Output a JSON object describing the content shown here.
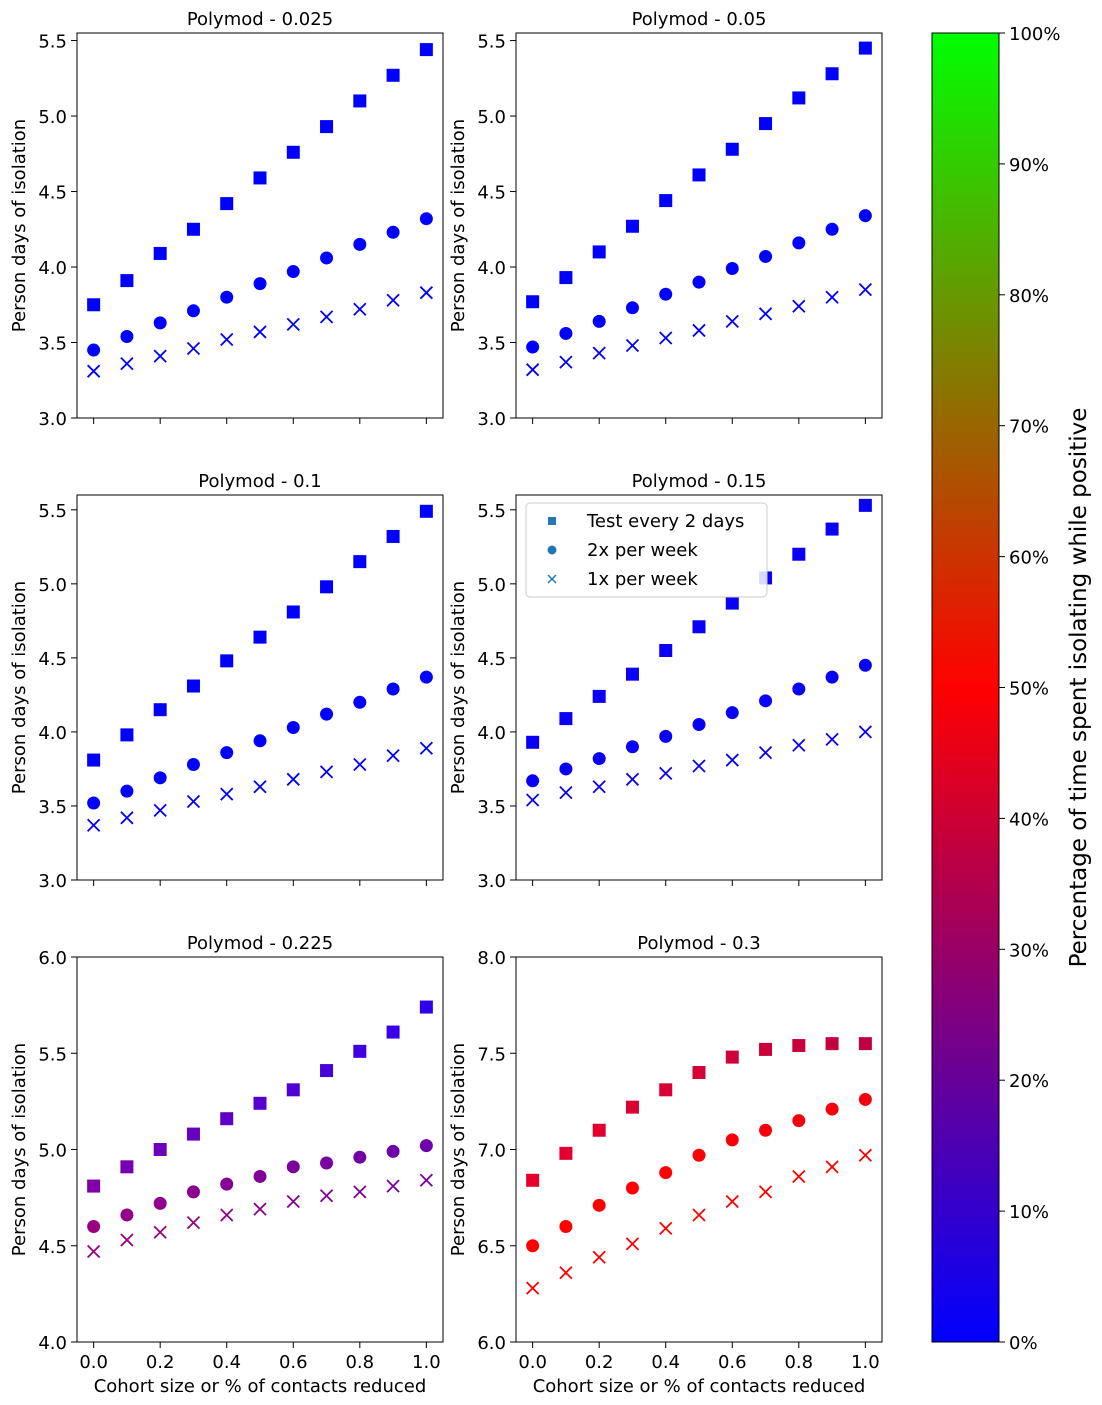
{
  "chart_data": {
    "type": "scatter",
    "x": [
      0.0,
      0.1,
      0.2,
      0.3,
      0.4,
      0.5,
      0.6,
      0.7,
      0.8,
      0.9,
      1.0
    ],
    "xlabel": "Cohort size or % of contacts reduced",
    "ylabel": "Person days of isolation",
    "x_ticks": [
      "0.0",
      "0.2",
      "0.4",
      "0.6",
      "0.8",
      "1.0"
    ],
    "legend": {
      "placement": "upper-left of panel 4",
      "entries": [
        {
          "marker": "square",
          "label": "Test every 2 days"
        },
        {
          "marker": "circle",
          "label": "2x per week"
        },
        {
          "marker": "x",
          "label": "1x per week"
        }
      ]
    },
    "colorbar": {
      "label": "Percentage of time spent isolating while positive",
      "ticks": [
        "0%",
        "10%",
        "20%",
        "30%",
        "40%",
        "50%",
        "60%",
        "70%",
        "80%",
        "90%",
        "100%"
      ],
      "colors": [
        "#0000ff",
        "#ff0000",
        "#00ff00"
      ]
    },
    "panels": [
      {
        "title": "Polymod - 0.025",
        "ylim": [
          3.0,
          5.55
        ],
        "y_ticks": [
          "3.0",
          "3.5",
          "4.0",
          "4.5",
          "5.0",
          "5.5"
        ],
        "color": "#0000ff",
        "series": [
          {
            "name": "Test every 2 days",
            "values": [
              3.75,
              3.91,
              4.09,
              4.25,
              4.42,
              4.59,
              4.76,
              4.93,
              5.1,
              5.27,
              5.44
            ]
          },
          {
            "name": "2x per week",
            "values": [
              3.45,
              3.54,
              3.63,
              3.71,
              3.8,
              3.89,
              3.97,
              4.06,
              4.15,
              4.23,
              4.32
            ]
          },
          {
            "name": "1x per week",
            "values": [
              3.31,
              3.36,
              3.41,
              3.46,
              3.52,
              3.57,
              3.62,
              3.67,
              3.72,
              3.78,
              3.83
            ]
          }
        ]
      },
      {
        "title": "Polymod - 0.05",
        "ylim": [
          3.0,
          5.55
        ],
        "y_ticks": [
          "3.0",
          "3.5",
          "4.0",
          "4.5",
          "5.0",
          "5.5"
        ],
        "color": "#0000ff",
        "series": [
          {
            "name": "Test every 2 days",
            "values": [
              3.77,
              3.93,
              4.1,
              4.27,
              4.44,
              4.61,
              4.78,
              4.95,
              5.12,
              5.28,
              5.45
            ]
          },
          {
            "name": "2x per week",
            "values": [
              3.47,
              3.56,
              3.64,
              3.73,
              3.82,
              3.9,
              3.99,
              4.07,
              4.16,
              4.25,
              4.34
            ]
          },
          {
            "name": "1x per week",
            "values": [
              3.32,
              3.37,
              3.43,
              3.48,
              3.53,
              3.58,
              3.64,
              3.69,
              3.74,
              3.8,
              3.85
            ]
          }
        ]
      },
      {
        "title": "Polymod - 0.1",
        "ylim": [
          3.0,
          5.6
        ],
        "y_ticks": [
          "3.0",
          "3.5",
          "4.0",
          "4.5",
          "5.0",
          "5.5"
        ],
        "color": "#0000ff",
        "series": [
          {
            "name": "Test every 2 days",
            "values": [
              3.81,
              3.98,
              4.15,
              4.31,
              4.48,
              4.64,
              4.81,
              4.98,
              5.15,
              5.32,
              5.49
            ]
          },
          {
            "name": "2x per week",
            "values": [
              3.52,
              3.6,
              3.69,
              3.78,
              3.86,
              3.94,
              4.03,
              4.12,
              4.2,
              4.29,
              4.37
            ]
          },
          {
            "name": "1x per week",
            "values": [
              3.37,
              3.42,
              3.47,
              3.53,
              3.58,
              3.63,
              3.68,
              3.73,
              3.78,
              3.84,
              3.89
            ]
          }
        ]
      },
      {
        "title": "Polymod - 0.15",
        "ylim": [
          3.0,
          5.6
        ],
        "y_ticks": [
          "3.0",
          "3.5",
          "4.0",
          "4.5",
          "5.0",
          "5.5"
        ],
        "color": "#0a00f5",
        "series": [
          {
            "name": "Test every 2 days",
            "values": [
              3.93,
              4.09,
              4.24,
              4.39,
              4.55,
              4.71,
              4.87,
              5.04,
              5.2,
              5.37,
              5.53
            ]
          },
          {
            "name": "2x per week",
            "values": [
              3.67,
              3.75,
              3.82,
              3.9,
              3.97,
              4.05,
              4.13,
              4.21,
              4.29,
              4.37,
              4.45
            ]
          },
          {
            "name": "1x per week",
            "values": [
              3.54,
              3.59,
              3.63,
              3.68,
              3.72,
              3.77,
              3.81,
              3.86,
              3.91,
              3.95,
              4.0
            ]
          }
        ]
      },
      {
        "title": "Polymod - 0.225",
        "ylim": [
          4.0,
          6.0
        ],
        "y_ticks": [
          "4.0",
          "4.5",
          "5.0",
          "5.5",
          "6.0"
        ],
        "series": [
          {
            "name": "Test every 2 days",
            "values": [
              4.81,
              4.91,
              5.0,
              5.08,
              5.16,
              5.24,
              5.31,
              5.41,
              5.51,
              5.61,
              5.74
            ],
            "colors": [
              "#8000a6",
              "#7800b0",
              "#7000b8",
              "#6800c0",
              "#6000c8",
              "#5800d0",
              "#5000d6",
              "#4800dc",
              "#4000e2",
              "#3800e8",
              "#3000ee"
            ]
          },
          {
            "name": "2x per week",
            "values": [
              4.6,
              4.66,
              4.72,
              4.78,
              4.82,
              4.86,
              4.91,
              4.93,
              4.96,
              4.99,
              5.02
            ],
            "colors": [
              "#9a0080",
              "#950088",
              "#90008c",
              "#8a0090",
              "#850094",
              "#800098",
              "#7b009c",
              "#7800a0",
              "#7400a4",
              "#7000a8",
              "#6c00ac"
            ]
          },
          {
            "name": "1x per week",
            "values": [
              4.47,
              4.53,
              4.57,
              4.62,
              4.66,
              4.69,
              4.73,
              4.76,
              4.78,
              4.81,
              4.84
            ],
            "colors": [
              "#a0007a",
              "#9c007e",
              "#980082",
              "#940086",
              "#90008a",
              "#8c008e",
              "#880092",
              "#840096",
              "#80009a",
              "#7c009e",
              "#7800a2"
            ]
          }
        ]
      },
      {
        "title": "Polymod - 0.3",
        "ylim": [
          6.0,
          8.0
        ],
        "y_ticks": [
          "6.0",
          "6.5",
          "7.0",
          "7.5",
          "8.0"
        ],
        "series": [
          {
            "name": "Test every 2 days",
            "values": [
              6.84,
              6.98,
              7.1,
              7.22,
              7.31,
              7.4,
              7.48,
              7.52,
              7.54,
              7.55,
              7.55
            ],
            "colors": [
              "#e8002c",
              "#e4002e",
              "#e00030",
              "#dc0032",
              "#d80034",
              "#d40036",
              "#d00038",
              "#cc003a",
              "#c8003c",
              "#c4003e",
              "#c00040"
            ]
          },
          {
            "name": "2x per week",
            "values": [
              6.5,
              6.6,
              6.71,
              6.8,
              6.88,
              6.97,
              7.05,
              7.1,
              7.15,
              7.21,
              7.26
            ],
            "colors": [
              "#ff0000",
              "#ff0000",
              "#ff0000",
              "#ff0004",
              "#fe0006",
              "#fc0008",
              "#fa000a",
              "#f8000c",
              "#f6000e",
              "#f40010",
              "#f20012"
            ]
          },
          {
            "name": "1x per week",
            "values": [
              6.28,
              6.36,
              6.44,
              6.51,
              6.59,
              6.66,
              6.73,
              6.78,
              6.86,
              6.91,
              6.97
            ],
            "colors": [
              "#ff0000",
              "#ff0000",
              "#ff0000",
              "#ff0000",
              "#ff0000",
              "#ff0000",
              "#ff0000",
              "#ff0000",
              "#ff0000",
              "#ff0000",
              "#ff0000"
            ]
          }
        ]
      }
    ]
  }
}
